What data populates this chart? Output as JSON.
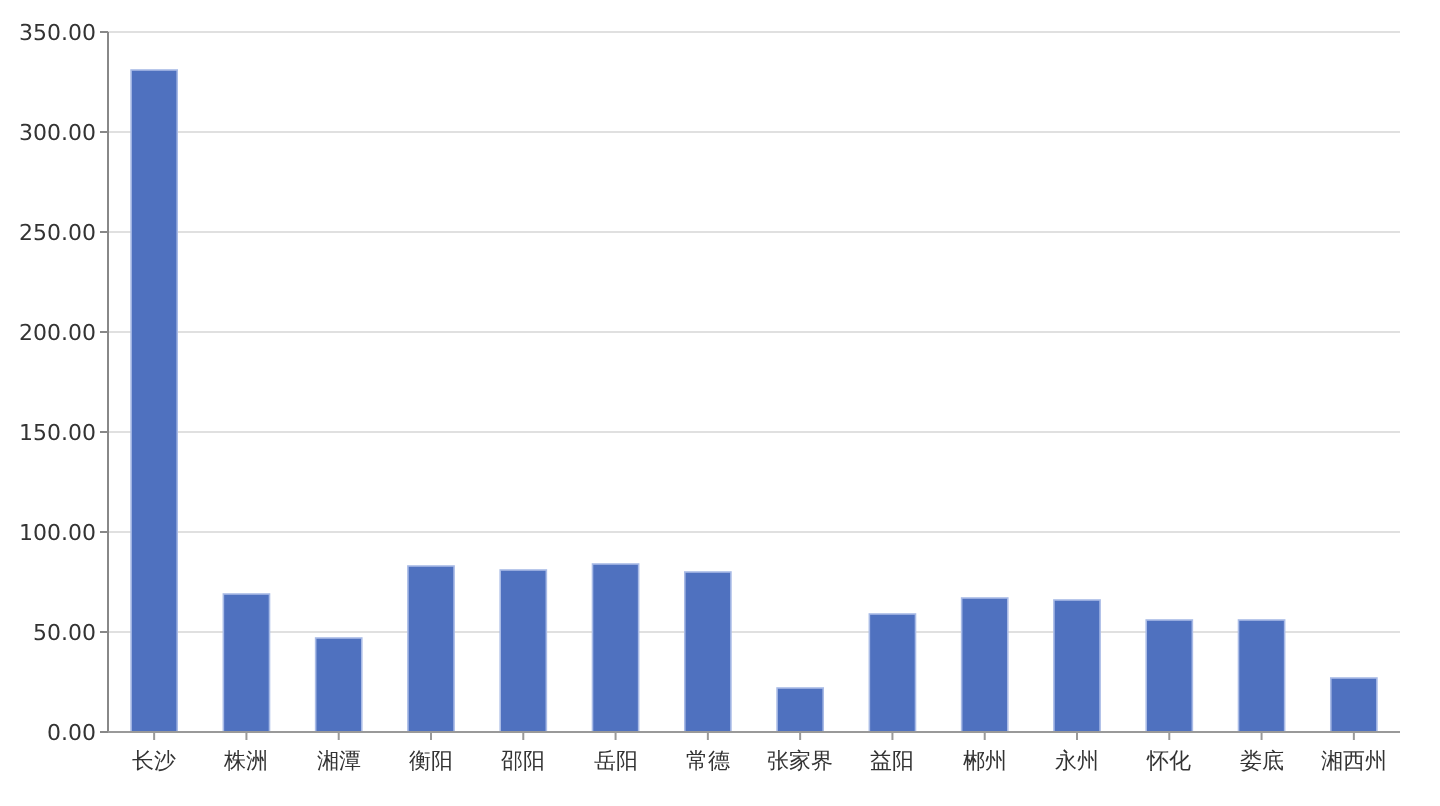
{
  "chart_data": {
    "type": "bar",
    "categories": [
      "长沙",
      "株洲",
      "湘潭",
      "衡阳",
      "邵阳",
      "岳阳",
      "常德",
      "张家界",
      "益阳",
      "郴州",
      "永州",
      "怀化",
      "娄底",
      "湘西州"
    ],
    "values": [
      331,
      69,
      47,
      83,
      81,
      84,
      80,
      22,
      59,
      67,
      66,
      56,
      56,
      27
    ],
    "color": "#4f71bf",
    "ylim": [
      0,
      350
    ],
    "yticks": [
      {
        "value": 0,
        "label": "0.00"
      },
      {
        "value": 50,
        "label": "50.00"
      },
      {
        "value": 100,
        "label": "100.00"
      },
      {
        "value": 150,
        "label": "150.00"
      },
      {
        "value": 200,
        "label": "200.00"
      },
      {
        "value": 250,
        "label": "250.00"
      },
      {
        "value": 300,
        "label": "300.00"
      },
      {
        "value": 350,
        "label": "350.00"
      }
    ],
    "grid": "y"
  }
}
